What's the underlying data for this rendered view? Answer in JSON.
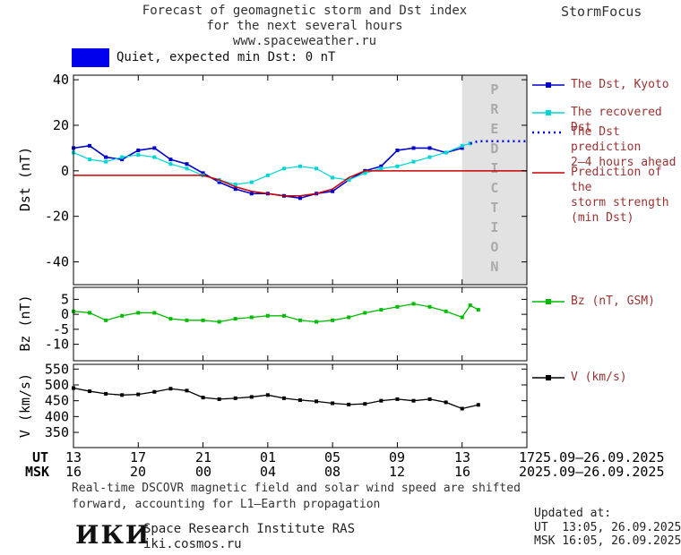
{
  "title": {
    "line1": "Forecast of geomagnetic storm and Dst index",
    "line2": "for the next several hours",
    "line3": "www.spaceweather.ru"
  },
  "brand": "StormFocus",
  "status_banner": {
    "label": "Quiet, expected min Dst: 0 nT"
  },
  "prediction_label": "PREDICTION",
  "colors": {
    "dst": "#0000cc",
    "recovered": "#00d5d5",
    "prediction": "#0000ee",
    "storm": "#cc0000",
    "bz": "#00bb00",
    "v": "#000000",
    "banner_swatch": "#0000ee",
    "legend_text": "#993333",
    "prediction_band": "#e2e2e2",
    "prediction_text": "#aaaaaa"
  },
  "legend": {
    "dst_kyoto": "The Dst, Kyoto",
    "recovered": "The recovered Dst",
    "prediction_l1": "The Dst prediction",
    "prediction_l2": "2–4 hours ahead",
    "storm_l1": "Prediction of the",
    "storm_l2": "storm strength",
    "storm_l3": "(min Dst)",
    "bz": "Bz (nT, GSM)",
    "v": "V (km/s)"
  },
  "xaxis": {
    "ut_label": "UT",
    "msk_label": "MSK",
    "ut_ticks": [
      "13",
      "17",
      "21",
      "01",
      "05",
      "09",
      "13",
      "17"
    ],
    "msk_ticks": [
      "16",
      "20",
      "00",
      "04",
      "08",
      "12",
      "16",
      "20"
    ],
    "ut_date": "25.09–26.09.2025",
    "msk_date": "25.09–26.09.2025"
  },
  "footnote": {
    "line1": "Real-time DSCOVR magnetic field and solar wind speed are shifted",
    "line2": "forward, accounting for L1–Earth propagation"
  },
  "updated": {
    "label": "Updated at:",
    "ut": "UT  13:05, 26.09.2025",
    "msk": "MSK 16:05, 26.09.2025"
  },
  "footer": {
    "logo": "ИКИ",
    "institute": "Space Research Institute RAS",
    "site": "iki.cosmos.ru"
  },
  "chart_data": [
    {
      "type": "line",
      "name": "Dst",
      "ylabel": "Dst (nT)",
      "ylim": [
        -50,
        42
      ],
      "yticks": [
        40,
        20,
        0,
        -20,
        -40
      ],
      "xlim": [
        0,
        28
      ],
      "xticks": [
        0,
        4,
        8,
        12,
        16,
        20,
        24,
        28
      ],
      "x_hours_note": "x in hours from 13:00 UT 25.09.2025",
      "prediction_band": [
        24,
        28
      ],
      "band_label": "PREDICTION",
      "series": [
        {
          "name": "The Dst, Kyoto",
          "color_key": "dst",
          "marker": true,
          "width": 1.6,
          "x": [
            0,
            1,
            2,
            3,
            4,
            5,
            6,
            7,
            8,
            9,
            10,
            11,
            12,
            13,
            14,
            15,
            16,
            17,
            18,
            19,
            20,
            21,
            22,
            23,
            24
          ],
          "y": [
            10,
            11,
            6,
            5,
            9,
            10,
            5,
            3,
            -1,
            -5,
            -8,
            -10,
            -10,
            -11,
            -12,
            -10,
            -9,
            -4,
            0,
            2,
            9,
            10,
            10,
            8,
            10
          ]
        },
        {
          "name": "The recovered Dst",
          "color_key": "recovered",
          "marker": true,
          "width": 1.2,
          "x": [
            0,
            1,
            2,
            3,
            4,
            5,
            6,
            7,
            8,
            9,
            10,
            11,
            12,
            13,
            14,
            15,
            16,
            17,
            18,
            19,
            20,
            21,
            22,
            23,
            24,
            24.5
          ],
          "y": [
            8,
            5,
            4,
            6,
            7,
            6,
            3,
            1,
            -2,
            -4,
            -6,
            -5,
            -2,
            1,
            2,
            1,
            -3,
            -4,
            -1,
            1,
            2,
            4,
            6,
            8,
            11,
            12
          ]
        },
        {
          "name": "The Dst prediction 2–4 hours ahead",
          "color_key": "prediction",
          "style": "dotted",
          "width": 2.6,
          "x": [
            24.5,
            25,
            26,
            27,
            28
          ],
          "y": [
            12,
            13,
            13,
            13,
            13
          ]
        },
        {
          "name": "Prediction of the storm strength (min Dst)",
          "color_key": "storm",
          "width": 1.5,
          "x": [
            0,
            8,
            9,
            10,
            11,
            12,
            13,
            14,
            15,
            16,
            17,
            18,
            28
          ],
          "y": [
            -2,
            -2,
            -4,
            -7,
            -9,
            -10,
            -11,
            -11,
            -10,
            -8,
            -3,
            0,
            0
          ]
        }
      ]
    },
    {
      "type": "line",
      "name": "Bz",
      "ylabel": "Bz (nT)",
      "ylim": [
        -15.5,
        9
      ],
      "yticks": [
        5,
        0,
        -5,
        -10
      ],
      "xlim": [
        0,
        28
      ],
      "xticks": [
        0,
        4,
        8,
        12,
        16,
        20,
        24,
        28
      ],
      "series": [
        {
          "name": "Bz (nT, GSM)",
          "color_key": "bz",
          "marker": true,
          "width": 1.3,
          "x": [
            0,
            1,
            2,
            3,
            4,
            5,
            6,
            7,
            8,
            9,
            10,
            11,
            12,
            13,
            14,
            15,
            16,
            17,
            18,
            19,
            20,
            21,
            22,
            23,
            24,
            24.5,
            25
          ],
          "y": [
            1,
            0.5,
            -2,
            -0.5,
            0.5,
            0.5,
            -1.5,
            -2,
            -2,
            -2.5,
            -1.5,
            -1,
            -0.5,
            -0.5,
            -2,
            -2.5,
            -2,
            -1,
            0.5,
            1.5,
            2.5,
            3.5,
            2.5,
            1,
            -1,
            3,
            1.5
          ]
        }
      ]
    },
    {
      "type": "line",
      "name": "V",
      "ylabel": "V (km/s)",
      "ylim": [
        302,
        565
      ],
      "yticks": [
        550,
        500,
        450,
        400,
        350
      ],
      "xlim": [
        0,
        28
      ],
      "xticks": [
        0,
        4,
        8,
        12,
        16,
        20,
        24,
        28
      ],
      "series": [
        {
          "name": "V (km/s)",
          "color_key": "v",
          "marker": true,
          "width": 1.3,
          "x": [
            0,
            1,
            2,
            3,
            4,
            5,
            6,
            7,
            8,
            9,
            10,
            11,
            12,
            13,
            14,
            15,
            16,
            17,
            18,
            19,
            20,
            21,
            22,
            23,
            24,
            25
          ],
          "y": [
            490,
            480,
            472,
            468,
            470,
            478,
            488,
            482,
            460,
            455,
            458,
            462,
            468,
            458,
            452,
            448,
            442,
            438,
            440,
            450,
            455,
            450,
            455,
            445,
            425,
            437
          ]
        }
      ]
    }
  ]
}
